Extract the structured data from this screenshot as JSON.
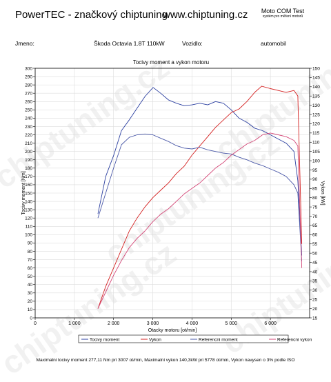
{
  "header": {
    "brand_title": "PowerTEC - značkový chiptuning",
    "website": "www.chiptuning.cz",
    "logo_name": "Moto COM Test",
    "logo_sub": "systém pro měření motorů"
  },
  "meta": {
    "name_label": "Jmeno:",
    "car": "Škoda Octavia 1.8T 110kW",
    "vehicle_label": "Vozidlo:",
    "vehicle_type": "automobil"
  },
  "watermark_text": "chiptuning.cz",
  "footer": "Maximalni tocivy moment 277,11 Nm pri 3007 ot/min,  Maximalni vykon 140,3kW pri 5778 ot/min,  Vykon navysen o 3% podle ISO",
  "chart_data": {
    "type": "line",
    "title": "Tocivy moment a vykon motoru",
    "xlabel": "Otacky motoru [ot/min]",
    "ylabel": "Tocivy moment [Nm]",
    "y2label": "Vykon [kW]",
    "xlim": [
      0,
      7000
    ],
    "ylim": [
      0,
      300
    ],
    "y2lim": [
      15,
      150
    ],
    "xticks": [
      0,
      1000,
      2000,
      3000,
      4000,
      5000,
      6000
    ],
    "xtick_labels": [
      "0",
      "1 000",
      "2 000",
      "3 000",
      "4 000",
      "5 000",
      "6 000"
    ],
    "yticks": [
      0,
      10,
      20,
      30,
      40,
      50,
      60,
      70,
      80,
      90,
      100,
      110,
      120,
      130,
      140,
      150,
      160,
      170,
      180,
      190,
      200,
      210,
      220,
      230,
      240,
      250,
      260,
      270,
      280,
      290,
      300
    ],
    "y2ticks": [
      15,
      20,
      25,
      30,
      35,
      40,
      45,
      50,
      55,
      60,
      65,
      70,
      75,
      80,
      85,
      90,
      95,
      100,
      105,
      110,
      115,
      120,
      125,
      130,
      135,
      140,
      145,
      150
    ],
    "grid": true,
    "legend_position": "bottom",
    "series": [
      {
        "name": "Tocivy moment",
        "color": "#2b3fa0",
        "axis": "left",
        "x": [
          1600,
          1800,
          2000,
          2200,
          2400,
          2600,
          2800,
          3007,
          3200,
          3400,
          3600,
          3800,
          4000,
          4200,
          4400,
          4600,
          4800,
          5000,
          5200,
          5400,
          5600,
          5800,
          6000,
          6200,
          6400,
          6600,
          6700,
          6800
        ],
        "y": [
          125,
          170,
          195,
          225,
          238,
          252,
          266,
          277,
          270,
          262,
          258,
          255,
          256,
          258,
          256,
          260,
          258,
          250,
          240,
          235,
          228,
          225,
          220,
          215,
          210,
          200,
          165,
          75
        ]
      },
      {
        "name": "Vykon",
        "color": "#d42020",
        "axis": "right",
        "x": [
          1600,
          1800,
          2000,
          2200,
          2400,
          2600,
          2800,
          3000,
          3200,
          3400,
          3600,
          3800,
          4000,
          4200,
          4400,
          4600,
          4800,
          5000,
          5200,
          5400,
          5600,
          5778,
          6000,
          6200,
          6400,
          6600,
          6700,
          6800
        ],
        "y": [
          20,
          32,
          42,
          52,
          62,
          69,
          75,
          80,
          84,
          88,
          93,
          97,
          103,
          108,
          113,
          118,
          122,
          126,
          128,
          132,
          137,
          140.3,
          139,
          138,
          137,
          138,
          135,
          55
        ]
      },
      {
        "name": "Referencni moment",
        "color": "#4a58a8",
        "axis": "left",
        "x": [
          1600,
          1800,
          2000,
          2200,
          2400,
          2600,
          2800,
          3000,
          3200,
          3400,
          3600,
          3800,
          4000,
          4200,
          4400,
          4600,
          4800,
          5000,
          5200,
          5400,
          5600,
          5800,
          6000,
          6200,
          6400,
          6600,
          6700,
          6800
        ],
        "y": [
          120,
          150,
          180,
          208,
          217,
          220,
          221,
          220,
          216,
          212,
          207,
          204,
          203,
          205,
          202,
          200,
          198,
          197,
          193,
          190,
          186,
          183,
          179,
          175,
          170,
          160,
          150,
          68
        ]
      },
      {
        "name": "Referencni vykon",
        "color": "#d44878",
        "axis": "right",
        "x": [
          1600,
          1800,
          2000,
          2200,
          2400,
          2600,
          2800,
          3000,
          3200,
          3400,
          3600,
          3800,
          4000,
          4200,
          4400,
          4600,
          4800,
          5000,
          5200,
          5400,
          5600,
          5800,
          6000,
          6200,
          6400,
          6600,
          6700,
          6800
        ],
        "y": [
          20,
          29,
          38,
          46,
          53,
          58,
          62,
          67,
          71,
          74,
          78,
          82,
          85,
          88,
          92,
          96,
          99,
          103,
          106,
          109,
          111,
          114,
          115,
          114,
          113,
          111,
          108,
          42
        ]
      }
    ]
  }
}
